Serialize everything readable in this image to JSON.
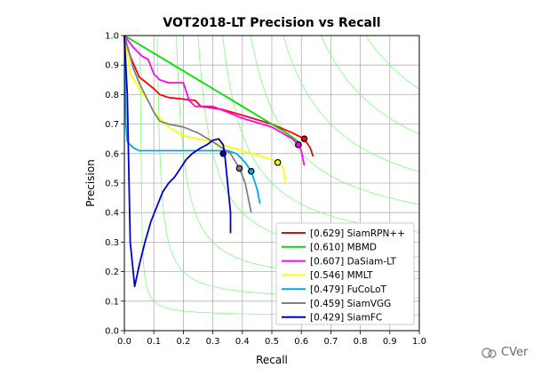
{
  "chart_data": {
    "type": "line",
    "title": "VOT2018-LT Precision vs Recall",
    "xlabel": "Recall",
    "ylabel": "Precision",
    "xlim": [
      0,
      1
    ],
    "ylim": [
      0,
      1
    ],
    "xticks": [
      "0.0",
      "0.1",
      "0.2",
      "0.3",
      "0.4",
      "0.5",
      "0.6",
      "0.7",
      "0.8",
      "0.9",
      "1.0"
    ],
    "yticks": [
      "0.0",
      "0.1",
      "0.2",
      "0.3",
      "0.4",
      "0.5",
      "0.6",
      "0.7",
      "0.8",
      "0.9",
      "1.0"
    ],
    "grid": true,
    "legend_position": "lower-right",
    "iso_f_color": "#7CFC7C",
    "series": [
      {
        "name": "[0.629] SiamRPN++",
        "color": "#ff0000",
        "points": [
          [
            0.0,
            1.0
          ],
          [
            0.02,
            0.93
          ],
          [
            0.05,
            0.86
          ],
          [
            0.1,
            0.82
          ],
          [
            0.12,
            0.8
          ],
          [
            0.15,
            0.79
          ],
          [
            0.24,
            0.78
          ],
          [
            0.26,
            0.76
          ],
          [
            0.33,
            0.75
          ],
          [
            0.4,
            0.73
          ],
          [
            0.5,
            0.7
          ],
          [
            0.57,
            0.67
          ],
          [
            0.61,
            0.65
          ],
          [
            0.63,
            0.62
          ],
          [
            0.64,
            0.59
          ]
        ],
        "marker": [
          0.61,
          0.65
        ]
      },
      {
        "name": "[0.610] MBMD",
        "color": "#00e000",
        "points": [
          [
            0.0,
            1.0
          ],
          [
            0.2,
            0.88
          ],
          [
            0.4,
            0.76
          ],
          [
            0.55,
            0.67
          ],
          [
            0.59,
            0.64
          ],
          [
            0.6,
            0.63
          ]
        ],
        "marker": null
      },
      {
        "name": "[0.607] DaSiam-LT",
        "color": "#ff00ff",
        "points": [
          [
            0.0,
            1.0
          ],
          [
            0.03,
            0.96
          ],
          [
            0.06,
            0.93
          ],
          [
            0.08,
            0.92
          ],
          [
            0.1,
            0.87
          ],
          [
            0.12,
            0.85
          ],
          [
            0.15,
            0.84
          ],
          [
            0.2,
            0.84
          ],
          [
            0.22,
            0.78
          ],
          [
            0.24,
            0.76
          ],
          [
            0.3,
            0.76
          ],
          [
            0.35,
            0.74
          ],
          [
            0.4,
            0.72
          ],
          [
            0.5,
            0.69
          ],
          [
            0.57,
            0.65
          ],
          [
            0.59,
            0.63
          ],
          [
            0.6,
            0.61
          ],
          [
            0.61,
            0.56
          ]
        ],
        "marker": [
          0.59,
          0.63
        ]
      },
      {
        "name": "[0.546] MMLT",
        "color": "#ffff00",
        "points": [
          [
            0.0,
            1.0
          ],
          [
            0.02,
            0.87
          ],
          [
            0.05,
            0.82
          ],
          [
            0.08,
            0.78
          ],
          [
            0.1,
            0.74
          ],
          [
            0.15,
            0.69
          ],
          [
            0.2,
            0.66
          ],
          [
            0.3,
            0.64
          ],
          [
            0.4,
            0.61
          ],
          [
            0.5,
            0.58
          ],
          [
            0.52,
            0.57
          ],
          [
            0.54,
            0.55
          ],
          [
            0.545,
            0.5
          ]
        ],
        "marker": [
          0.52,
          0.57
        ]
      },
      {
        "name": "[0.479] FuCoLoT",
        "color": "#00a8e8",
        "points": [
          [
            0.0,
            1.0
          ],
          [
            0.005,
            0.7
          ],
          [
            0.01,
            0.64
          ],
          [
            0.03,
            0.62
          ],
          [
            0.05,
            0.61
          ],
          [
            0.1,
            0.61
          ],
          [
            0.2,
            0.61
          ],
          [
            0.3,
            0.61
          ],
          [
            0.35,
            0.61
          ],
          [
            0.38,
            0.6
          ],
          [
            0.41,
            0.57
          ],
          [
            0.43,
            0.54
          ],
          [
            0.45,
            0.48
          ],
          [
            0.46,
            0.43
          ]
        ],
        "marker": [
          0.43,
          0.54
        ]
      },
      {
        "name": "[0.459] SiamVGG",
        "color": "#808080",
        "points": [
          [
            0.0,
            1.0
          ],
          [
            0.03,
            0.89
          ],
          [
            0.05,
            0.84
          ],
          [
            0.07,
            0.8
          ],
          [
            0.1,
            0.74
          ],
          [
            0.12,
            0.71
          ],
          [
            0.15,
            0.7
          ],
          [
            0.2,
            0.69
          ],
          [
            0.25,
            0.67
          ],
          [
            0.3,
            0.64
          ],
          [
            0.33,
            0.62
          ],
          [
            0.36,
            0.6
          ],
          [
            0.39,
            0.55
          ],
          [
            0.41,
            0.5
          ],
          [
            0.42,
            0.45
          ],
          [
            0.43,
            0.4
          ]
        ],
        "marker": [
          0.39,
          0.55
        ]
      },
      {
        "name": "[0.429] SiamFC",
        "color": "#0000cc",
        "points": [
          [
            0.0,
            1.0
          ],
          [
            0.01,
            0.8
          ],
          [
            0.02,
            0.3
          ],
          [
            0.035,
            0.15
          ],
          [
            0.05,
            0.22
          ],
          [
            0.07,
            0.3
          ],
          [
            0.09,
            0.37
          ],
          [
            0.11,
            0.42
          ],
          [
            0.13,
            0.47
          ],
          [
            0.15,
            0.5
          ],
          [
            0.17,
            0.52
          ],
          [
            0.19,
            0.55
          ],
          [
            0.21,
            0.58
          ],
          [
            0.23,
            0.6
          ],
          [
            0.26,
            0.62
          ],
          [
            0.28,
            0.63
          ],
          [
            0.3,
            0.645
          ],
          [
            0.32,
            0.65
          ],
          [
            0.335,
            0.63
          ],
          [
            0.34,
            0.6
          ],
          [
            0.35,
            0.5
          ],
          [
            0.36,
            0.4
          ],
          [
            0.36,
            0.33
          ]
        ],
        "marker": [
          0.335,
          0.6
        ]
      }
    ]
  },
  "watermark": {
    "text": "CVer",
    "icon": "cver-logo-icon"
  }
}
